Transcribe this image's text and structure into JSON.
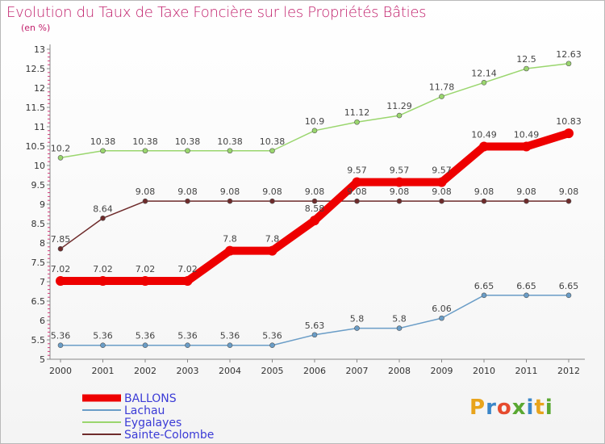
{
  "chart_title": "Evolution du Taux de Taxe Foncière sur les Propriétés Bâties",
  "chart_subtitle": "(en %)",
  "brand": {
    "letters": [
      "P",
      "r",
      "o",
      "x",
      "i",
      "t",
      "i"
    ],
    "colors": [
      "#e8a41c",
      "#3b86c8",
      "#e64b2e",
      "#5aa832",
      "#3b86c8",
      "#e8a41c",
      "#5aa832"
    ]
  },
  "chart_data": {
    "type": "line",
    "x": [
      "2000",
      "2001",
      "2002",
      "2003",
      "2004",
      "2005",
      "2006",
      "2007",
      "2008",
      "2009",
      "2010",
      "2011",
      "2012"
    ],
    "ylim": [
      5,
      13
    ],
    "yticks": [
      "5",
      "5.5",
      "6",
      "6.5",
      "7",
      "7.5",
      "8",
      "8.5",
      "9",
      "9.5",
      "10",
      "10.5",
      "11",
      "11.5",
      "12",
      "12.5",
      "13"
    ],
    "grid": false,
    "legend_position": "bottom-left",
    "series": [
      {
        "name": "BALLONS",
        "color": "#ee0000",
        "emphasis": true,
        "values": [
          7.02,
          7.02,
          7.02,
          7.02,
          7.8,
          7.8,
          8.58,
          9.57,
          9.57,
          9.57,
          10.49,
          10.49,
          10.83
        ],
        "labels": [
          "7.02",
          "7.02",
          "7.02",
          "7.02",
          "7.8",
          "7.8",
          "8.58",
          "9.57",
          "9.57",
          "9.57",
          "10.49",
          "10.49",
          "10.83"
        ]
      },
      {
        "name": "Lachau",
        "color": "#6a9dc7",
        "emphasis": false,
        "values": [
          5.36,
          5.36,
          5.36,
          5.36,
          5.36,
          5.36,
          5.63,
          5.8,
          5.8,
          6.06,
          6.65,
          6.65,
          6.65
        ],
        "labels": [
          "5.36",
          "5.36",
          "5.36",
          "5.36",
          "5.36",
          "5.36",
          "5.63",
          "5.8",
          "5.8",
          "6.06",
          "6.65",
          "6.65",
          "6.65"
        ]
      },
      {
        "name": "Eygalayes",
        "color": "#9ad66e",
        "emphasis": false,
        "values": [
          10.2,
          10.38,
          10.38,
          10.38,
          10.38,
          10.38,
          10.9,
          11.12,
          11.29,
          11.78,
          12.14,
          12.5,
          12.63
        ],
        "labels": [
          "10.2",
          "10.38",
          "10.38",
          "10.38",
          "10.38",
          "10.38",
          "10.9",
          "11.12",
          "11.29",
          "11.78",
          "12.14",
          "12.5",
          "12.63"
        ]
      },
      {
        "name": "Sainte-Colombe",
        "color": "#6e2b2b",
        "emphasis": false,
        "values": [
          7.85,
          8.64,
          9.08,
          9.08,
          9.08,
          9.08,
          9.08,
          9.08,
          9.08,
          9.08,
          9.08,
          9.08,
          9.08
        ],
        "labels": [
          "7.85",
          "8.64",
          "9.08",
          "9.08",
          "9.08",
          "9.08",
          "9.08",
          "9.08",
          "9.08",
          "9.08",
          "9.08",
          "9.08",
          "9.08"
        ]
      }
    ]
  }
}
